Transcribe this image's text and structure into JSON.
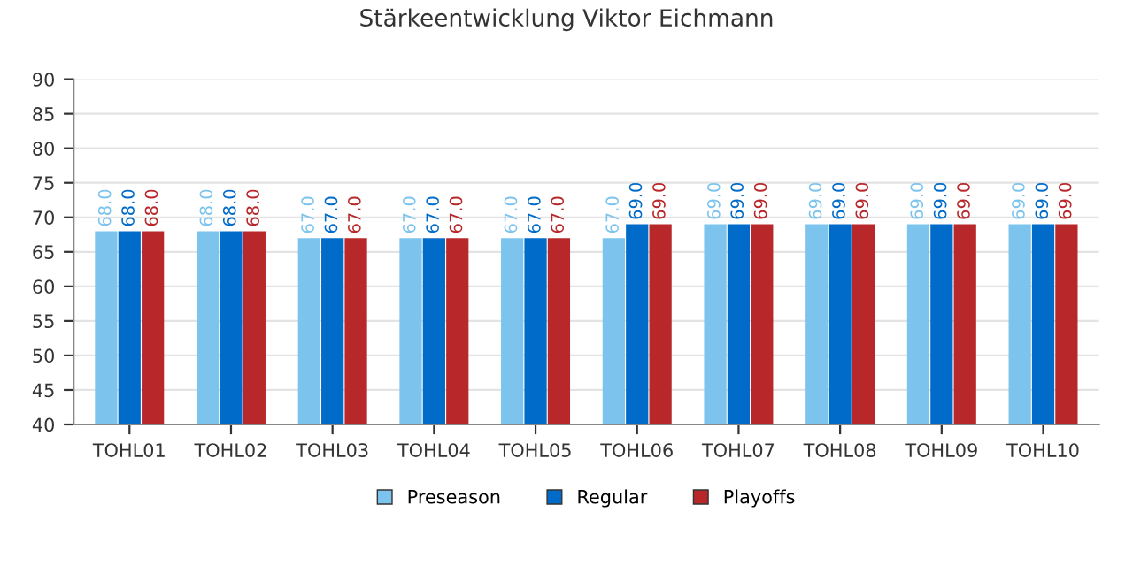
{
  "chart_data": {
    "type": "bar",
    "title": "Stärkeentwicklung Viktor Eichmann",
    "categories": [
      "TOHL01",
      "TOHL02",
      "TOHL03",
      "TOHL04",
      "TOHL05",
      "TOHL06",
      "TOHL07",
      "TOHL08",
      "TOHL09",
      "TOHL10"
    ],
    "series": [
      {
        "name": "Preseason",
        "color": "#7cc4ee",
        "values": [
          68,
          68,
          67,
          67,
          67,
          67,
          69,
          69,
          69,
          69
        ],
        "value_labels": [
          "68.0",
          "68.0",
          "67.0",
          "67.0",
          "67.0",
          "67.0",
          "69.0",
          "69.0",
          "69.0",
          "69.0"
        ]
      },
      {
        "name": "Regular",
        "color": "#006bc9",
        "values": [
          68,
          68,
          67,
          67,
          67,
          69,
          69,
          69,
          69,
          69
        ],
        "value_labels": [
          "68.0",
          "68.0",
          "67.0",
          "67.0",
          "67.0",
          "69.0",
          "69.0",
          "69.0",
          "69.0",
          "69.0"
        ]
      },
      {
        "name": "Playoffs",
        "color": "#b8282a",
        "values": [
          68,
          68,
          67,
          67,
          67,
          69,
          69,
          69,
          69,
          69
        ],
        "value_labels": [
          "68.0",
          "68.0",
          "67.0",
          "67.0",
          "67.0",
          "69.0",
          "69.0",
          "69.0",
          "69.0",
          "69.0"
        ]
      }
    ],
    "ylim": [
      40,
      90
    ],
    "yticks": [
      40,
      45,
      50,
      55,
      60,
      65,
      70,
      75,
      80,
      85,
      90
    ],
    "grid": "y",
    "legend": "bottom"
  }
}
